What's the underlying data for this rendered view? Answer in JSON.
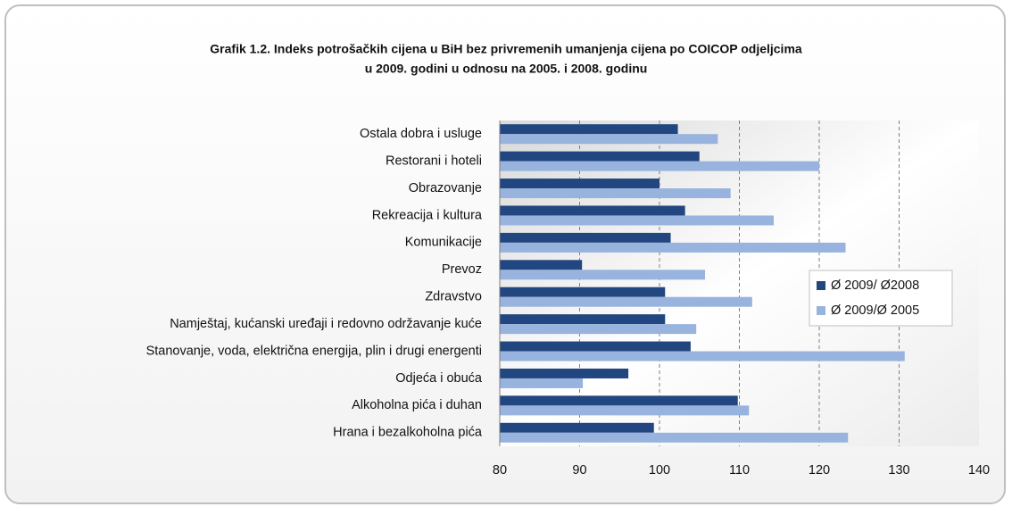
{
  "chart_data": {
    "type": "barh",
    "title": [
      "Grafik 1.2. Indeks potrošačkih cijena u BiH bez privremenih umanjenja cijena po COICOP odjeljcima",
      "u 2009. godini u odnosu na 2005. i 2008. godinu"
    ],
    "categories": [
      "Ostala dobra i usluge",
      "Restorani i hoteli ",
      "Obrazovanje",
      "Rekreacija i kultura",
      "Komunikacije",
      "Prevoz",
      "Zdravstvo",
      "Namještaj, kućanski uređaji i redovno održavanje kuće",
      "Stanovanje, voda, električna energija, plin i drugi energenti",
      "Odjeća i obuća",
      "Alkoholna pića i duhan",
      "Hrana i bezalkoholna pića"
    ],
    "series": [
      {
        "name": "Ø 2009/ Ø2008",
        "color": "#22467f",
        "values": [
          102.3,
          105.0,
          100.0,
          103.2,
          101.4,
          90.3,
          100.7,
          100.7,
          103.9,
          96.1,
          109.8,
          99.3
        ]
      },
      {
        "name": "Ø 2009/Ø 2005",
        "color": "#98b3dd",
        "values": [
          107.3,
          120.0,
          108.9,
          114.3,
          123.3,
          105.7,
          111.6,
          104.6,
          130.7,
          90.4,
          111.2,
          123.6
        ]
      }
    ],
    "xlim": [
      80,
      140
    ],
    "xticks": [
      80,
      90,
      100,
      110,
      120,
      130,
      140
    ],
    "grid": true,
    "legend": "right"
  }
}
